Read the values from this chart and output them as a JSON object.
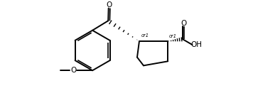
{
  "bg_color": "#ffffff",
  "line_color": "#000000",
  "line_width": 1.4,
  "fig_width": 3.56,
  "fig_height": 1.38,
  "dpi": 100,
  "xlim": [
    -1.0,
    10.5
  ],
  "ylim": [
    0.3,
    5.8
  ]
}
